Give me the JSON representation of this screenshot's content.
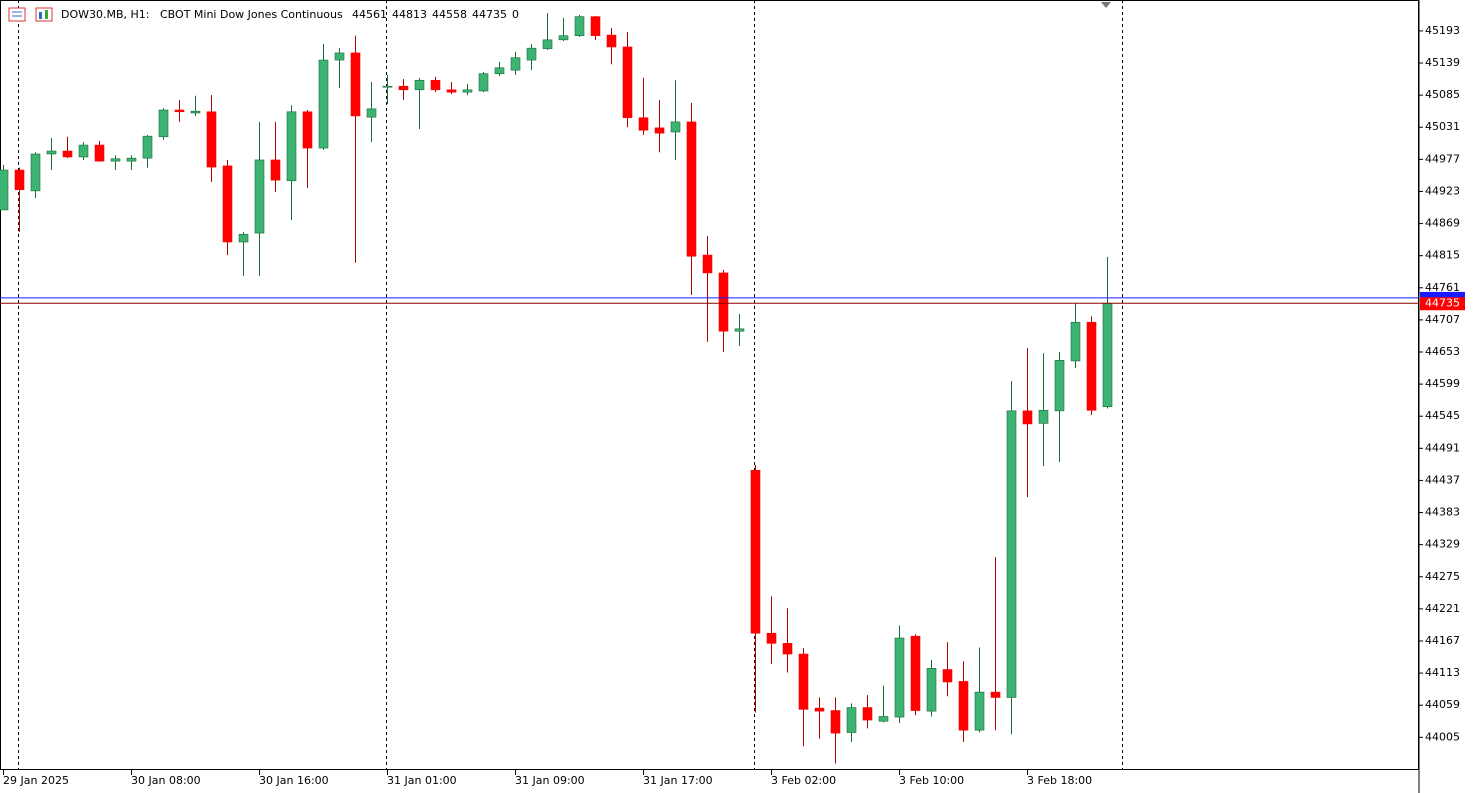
{
  "chart_data": {
    "type": "candlestick",
    "symbol": "DOW30.MB, H1:",
    "description": "CBOT Mini Dow Jones Continuous",
    "spread": 0,
    "categories": [
      "29 Jan 2025",
      null,
      null,
      null,
      null,
      null,
      null,
      null,
      "30 Jan 08:00",
      null,
      null,
      null,
      null,
      null,
      null,
      null,
      "30 Jan 16:00",
      null,
      null,
      null,
      null,
      null,
      null,
      null,
      "31 Jan 01:00",
      null,
      null,
      null,
      null,
      null,
      null,
      null,
      "31 Jan 09:00",
      null,
      null,
      null,
      null,
      null,
      null,
      null,
      "31 Jan 17:00",
      null,
      null,
      null,
      null,
      null,
      null,
      null,
      "3 Feb 02:00",
      null,
      null,
      null,
      null,
      null,
      null,
      null,
      "3 Feb 10:00",
      null,
      null,
      null,
      null,
      null,
      null,
      null,
      "3 Feb 18:00",
      null,
      null,
      null,
      null,
      null
    ],
    "open": [
      44892,
      44959,
      44924,
      44986,
      44991,
      44981,
      45001,
      44974,
      44974,
      44979,
      45015,
      45060,
      45055,
      45057,
      44966,
      44838,
      44853,
      44976,
      44941,
      45057,
      44996,
      45144,
      45156,
      45048,
      45099,
      45100,
      45094,
      45110,
      45094,
      45090,
      45092,
      45121,
      45127,
      45144,
      45163,
      45178,
      45185,
      45217,
      45186,
      45166,
      45047,
      45030,
      45023,
      45040,
      44816,
      44786,
      44688,
      44454,
      44180,
      44163,
      44145,
      44054,
      44050,
      44013,
      44055,
      44032,
      44039,
      44175,
      44049,
      44119,
      44099,
      44017,
      44081,
      44072,
      44554,
      44533,
      44554,
      44638,
      44703,
      44561
    ],
    "high": [
      44968,
      44963,
      44989,
      45013,
      45015,
      45006,
      45008,
      44984,
      44984,
      45018,
      45063,
      45077,
      45084,
      45085,
      44976,
      44855,
      45040,
      45040,
      45068,
      45060,
      45171,
      45164,
      45185,
      45107,
      45119,
      45112,
      45114,
      45116,
      45107,
      45104,
      45124,
      45141,
      45158,
      45171,
      45223,
      45215,
      45220,
      45218,
      45198,
      45191,
      45114,
      45077,
      45110,
      45072,
      44848,
      44791,
      44717,
      44463,
      44242,
      44222,
      44155,
      44072,
      44072,
      44062,
      44076,
      44092,
      44193,
      44178,
      44135,
      44165,
      44133,
      44156,
      44308,
      44604,
      44660,
      44651,
      44653,
      44735,
      44713,
      44813
    ],
    "low": [
      44892,
      44855,
      44912,
      44959,
      44979,
      44976,
      44973,
      44959,
      44959,
      44963,
      45010,
      45040,
      45050,
      44939,
      44816,
      44781,
      44781,
      44922,
      44875,
      44929,
      44993,
      45097,
      44803,
      45006,
      45070,
      45077,
      45028,
      45090,
      45087,
      45085,
      45090,
      45117,
      45119,
      45127,
      45161,
      45176,
      45183,
      45178,
      45137,
      45031,
      45018,
      44989,
      44976,
      44749,
      44670,
      44653,
      44663,
      44047,
      44128,
      44114,
      43990,
      44003,
      43961,
      43997,
      44020,
      44030,
      44029,
      44042,
      44040,
      44074,
      43997,
      44013,
      44017,
      44010,
      44409,
      44461,
      44468,
      44626,
      44547,
      44558
    ],
    "close": [
      44959,
      44926,
      44986,
      44991,
      44981,
      45001,
      44974,
      44978,
      44979,
      45016,
      45060,
      45057,
      45058,
      44964,
      44838,
      44851,
      44976,
      44942,
      45057,
      44996,
      45144,
      45156,
      45050,
      45062,
      45100,
      45094,
      45110,
      45094,
      45090,
      45094,
      45121,
      45131,
      45148,
      45164,
      45178,
      45185,
      45217,
      45185,
      45166,
      45047,
      45026,
      45021,
      45040,
      44814,
      44786,
      44688,
      44692,
      44180,
      44163,
      44145,
      44052,
      44049,
      44012,
      44055,
      44034,
      44040,
      44172,
      44050,
      44121,
      44098,
      44017,
      44081,
      44072,
      44554,
      44532,
      44555,
      44639,
      44703,
      44555,
      44735
    ],
    "ask": 44744,
    "up_color": "#3cb371",
    "down_color": "#ff0000",
    "bid_color": "#8b0000",
    "ask_color": "#1a1aff",
    "ylim": [
      43950,
      45245
    ],
    "yticks": [
      45193,
      45139,
      45085,
      45031,
      44977,
      44923,
      44869,
      44815,
      44761,
      44707,
      44653,
      44599,
      44545,
      44491,
      44437,
      44383,
      44329,
      44275,
      44221,
      44167,
      44113,
      44059,
      44005
    ]
  }
}
